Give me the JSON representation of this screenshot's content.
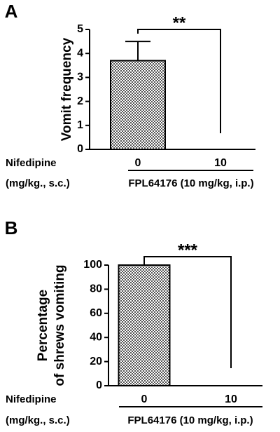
{
  "chart_data": [
    {
      "type": "bar",
      "panel_label": "A",
      "ylabel": [
        "Vomit frequency"
      ],
      "categories": [
        "0",
        "10"
      ],
      "values": [
        3.7,
        0
      ],
      "errors": [
        0.8,
        null
      ],
      "color": "#555555",
      "ylim": [
        0,
        5
      ],
      "yticks": [
        0,
        1,
        2,
        3,
        4,
        5
      ],
      "x_row_label": [
        "Nifedipine",
        "(mg/kg., s.c.)"
      ],
      "group_label": "FPL64176 (10 mg/kg, i.p.)",
      "significance": "**"
    },
    {
      "type": "bar",
      "panel_label": "B",
      "ylabel": [
        "Percentage",
        "of shrews vomiting"
      ],
      "categories": [
        "0",
        "10"
      ],
      "values": [
        100,
        0
      ],
      "color": "#555555",
      "ylim": [
        0,
        100
      ],
      "yticks": [
        0,
        20,
        40,
        60,
        80,
        100
      ],
      "x_row_label": [
        "Nifedipine",
        "(mg/kg., s.c.)"
      ],
      "group_label": "FPL64176 (10 mg/kg, i.p.)",
      "significance": "***"
    }
  ]
}
